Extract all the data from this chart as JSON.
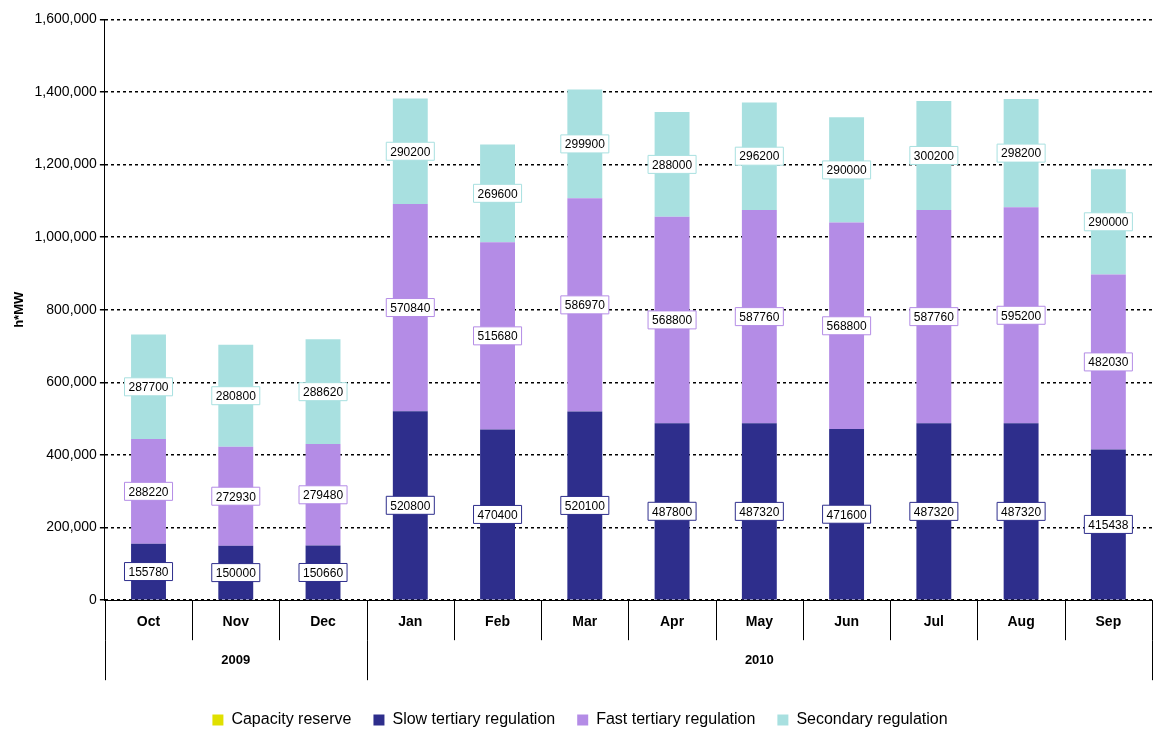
{
  "chart_data": {
    "type": "bar",
    "stacked": true,
    "ylabel": "h*MW",
    "categories": [
      "Oct",
      "Nov",
      "Dec",
      "Jan",
      "Feb",
      "Mar",
      "Apr",
      "May",
      "Jun",
      "Jul",
      "Aug",
      "Sep"
    ],
    "series": [
      {
        "name": "Capacity reserve",
        "color": "#e0e000",
        "values": [
          null,
          null,
          null,
          null,
          null,
          null,
          null,
          null,
          null,
          null,
          null,
          null
        ]
      },
      {
        "name": "Slow tertiary regulation",
        "color": "#2e2e8c",
        "values": [
          155780,
          150000,
          150660,
          520800,
          470400,
          520100,
          487800,
          487320,
          471600,
          487320,
          487320,
          415438
        ],
        "value_labels": [
          "155780",
          "150000",
          "150660",
          "520800",
          "470400",
          "520100",
          "487800",
          "487320",
          "471600",
          "487320",
          "487320",
          "415438"
        ]
      },
      {
        "name": "Fast tertiary regulation",
        "color": "#b48ce6",
        "values": [
          288220,
          272930,
          279480,
          570840,
          515680,
          586970,
          568800,
          587760,
          568800,
          587760,
          595200,
          482030
        ],
        "value_labels": [
          "288220",
          "272930",
          "279480",
          "570840",
          "515680",
          "586970",
          "568800",
          "587760",
          "568800",
          "587760",
          "595200",
          "482030"
        ]
      },
      {
        "name": "Secondary regulation",
        "color": "#a8e0e0",
        "values": [
          287700,
          280800,
          288620,
          290200,
          269600,
          299900,
          288000,
          296200,
          290000,
          300200,
          298200,
          290000
        ],
        "value_labels": [
          "287700",
          "280800",
          "288620",
          "290200",
          "269600",
          "299900",
          "288000",
          "296200",
          "290000",
          "300200",
          "298200",
          "290000"
        ]
      }
    ],
    "ylim": [
      0,
      1600000
    ],
    "yticks": [
      {
        "value": 0,
        "label": "0"
      },
      {
        "value": 200000,
        "label": "200,000"
      },
      {
        "value": 400000,
        "label": "400,000"
      },
      {
        "value": 600000,
        "label": "600,000"
      },
      {
        "value": 800000,
        "label": "800,000"
      },
      {
        "value": 1000000,
        "label": "1,000,000"
      },
      {
        "value": 1200000,
        "label": "1,200,000"
      },
      {
        "value": 1400000,
        "label": "1,400,000"
      },
      {
        "value": 1600000,
        "label": "1,600,000"
      }
    ],
    "grid": "y",
    "legend": "bottom",
    "annotations": [
      "2009",
      "2010"
    ]
  }
}
